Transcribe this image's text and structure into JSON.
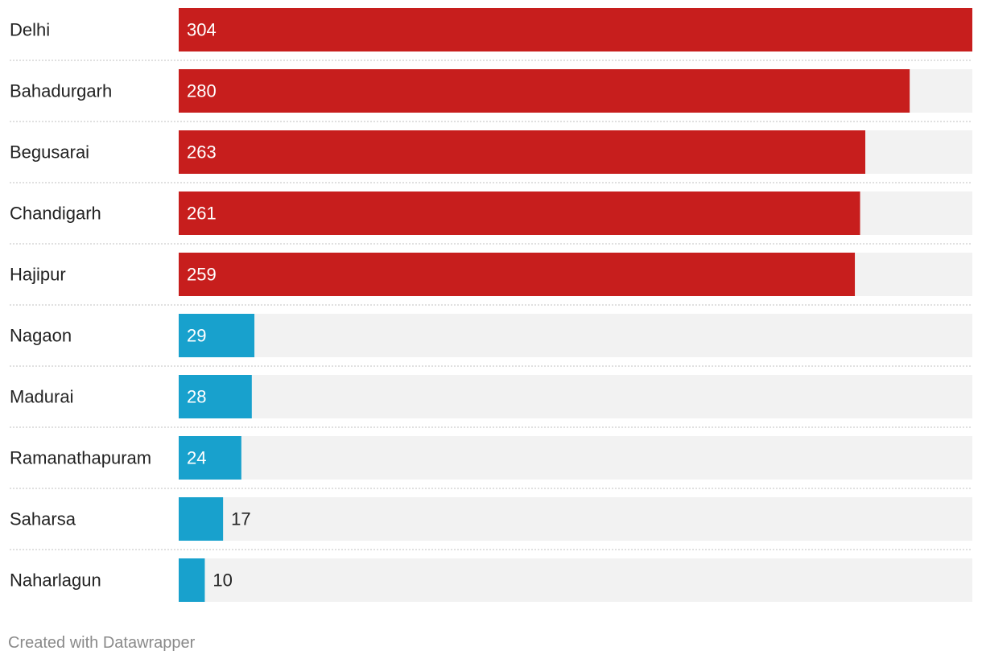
{
  "chart_data": {
    "type": "bar",
    "orientation": "horizontal",
    "categories": [
      "Delhi",
      "Bahadurgarh",
      "Begusarai",
      "Chandigarh",
      "Hajipur",
      "Nagaon",
      "Madurai",
      "Ramanathapuram",
      "Saharsa",
      "Naharlagun"
    ],
    "values": [
      304,
      280,
      263,
      261,
      259,
      29,
      28,
      24,
      17,
      10
    ],
    "value_labels": [
      "304",
      "280",
      "263",
      "261",
      "259",
      "29",
      "28",
      "24",
      "17",
      "10"
    ],
    "bar_colors": [
      "#c71e1d",
      "#c71e1d",
      "#c71e1d",
      "#c71e1d",
      "#c71e1d",
      "#18a1cd",
      "#18a1cd",
      "#18a1cd",
      "#18a1cd",
      "#18a1cd"
    ],
    "xlim": [
      0,
      304
    ],
    "title": "",
    "xlabel": "",
    "ylabel": "",
    "grid": false,
    "legend": "none"
  },
  "colors": {
    "high": "#c71e1d",
    "low": "#18a1cd",
    "track": "#f2f2f2",
    "separator": "#d6d6d6"
  },
  "footer": {
    "credit": "Created with Datawrapper"
  }
}
